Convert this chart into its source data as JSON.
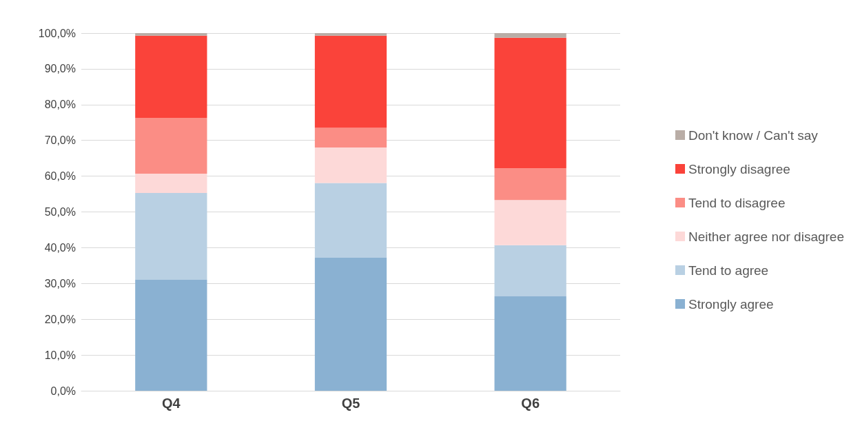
{
  "chart_data": {
    "type": "bar",
    "stacked": true,
    "categories": [
      "Q4",
      "Q5",
      "Q6"
    ],
    "series": [
      {
        "name": "Strongly agree",
        "color": "#8ab1d2",
        "values": [
          31.0,
          37.2,
          26.4
        ]
      },
      {
        "name": "Tend to agree",
        "color": "#b9d0e3",
        "values": [
          24.3,
          20.9,
          14.3
        ]
      },
      {
        "name": "Neither agree nor disagree",
        "color": "#fdd9d8",
        "values": [
          5.4,
          9.9,
          12.6
        ]
      },
      {
        "name": "Tend to disagree",
        "color": "#fb8d85",
        "values": [
          15.6,
          5.5,
          8.9
        ]
      },
      {
        "name": "Strongly disagree",
        "color": "#fa433a",
        "values": [
          23.0,
          25.8,
          36.5
        ]
      },
      {
        "name": "Don't know / Can't say",
        "color": "#b9ada6",
        "values": [
          0.7,
          0.7,
          1.3
        ]
      }
    ],
    "ylim": [
      0,
      100
    ],
    "yticks": [
      {
        "value": 0,
        "label": "0,0%"
      },
      {
        "value": 10,
        "label": "10,0%"
      },
      {
        "value": 20,
        "label": "20,0%"
      },
      {
        "value": 30,
        "label": "30,0%"
      },
      {
        "value": 40,
        "label": "40,0%"
      },
      {
        "value": 50,
        "label": "50,0%"
      },
      {
        "value": 60,
        "label": "60,0%"
      },
      {
        "value": 70,
        "label": "70,0%"
      },
      {
        "value": 80,
        "label": "80,0%"
      },
      {
        "value": 90,
        "label": "90,0%"
      },
      {
        "value": 100,
        "label": "100,0%"
      }
    ],
    "grid": true,
    "legend": "right"
  }
}
